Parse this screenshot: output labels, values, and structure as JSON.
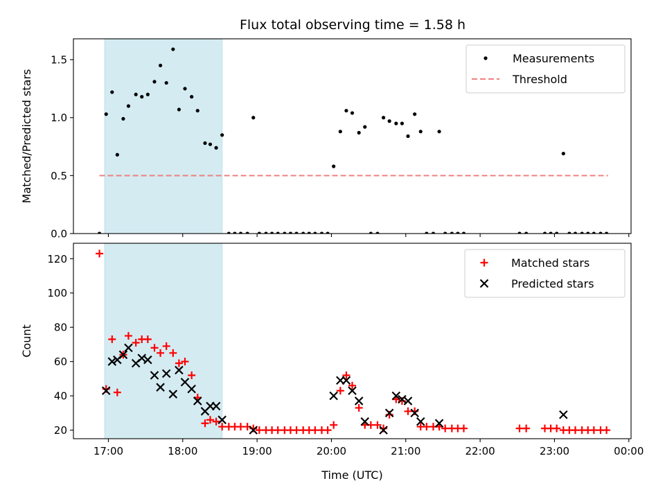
{
  "title": "Flux total observing time = 1.58 h",
  "colors": {
    "measurement": "#000000",
    "threshold": "#f08080",
    "matched": "#ff0000",
    "predicted": "#000000",
    "span": "#add8e6"
  },
  "chart_data": [
    {
      "type": "scatter",
      "name": "ratio",
      "ylabel": "Matched/Predicted stars",
      "xlim": [
        16.53,
        24.03
      ],
      "ylim": [
        0,
        1.68
      ],
      "yticks": [
        0.0,
        0.5,
        1.0,
        1.5
      ],
      "ytick_labels": [
        "0.0",
        "0.5",
        "1.0",
        "1.5"
      ],
      "span": [
        16.95,
        18.53
      ],
      "threshold": {
        "value": 0.5,
        "x_range": [
          16.88,
          23.72
        ],
        "label": "Threshold"
      },
      "legend": {
        "placement": "top-right",
        "entries": [
          "Measurements",
          "Threshold"
        ]
      },
      "series": [
        {
          "name": "Measurements",
          "x": [
            16.88,
            16.97,
            17.05,
            17.12,
            17.2,
            17.27,
            17.37,
            17.45,
            17.53,
            17.62,
            17.7,
            17.78,
            17.87,
            17.95,
            18.03,
            18.12,
            18.2,
            18.3,
            18.37,
            18.45,
            18.53,
            18.62,
            18.7,
            18.78,
            18.87,
            18.95,
            19.03,
            19.12,
            19.2,
            19.28,
            19.37,
            19.45,
            19.53,
            19.62,
            19.7,
            19.78,
            19.87,
            19.95,
            20.03,
            20.12,
            20.2,
            20.28,
            20.37,
            20.45,
            20.53,
            20.62,
            20.7,
            20.78,
            20.87,
            20.95,
            21.03,
            21.12,
            21.2,
            21.28,
            21.37,
            21.45,
            21.53,
            21.62,
            21.7,
            21.78,
            22.53,
            22.62,
            22.87,
            22.95,
            23.03,
            23.12,
            23.2,
            23.28,
            23.37,
            23.45,
            23.53,
            23.62,
            23.7
          ],
          "y": [
            0,
            1.03,
            1.22,
            0.68,
            0.99,
            1.1,
            1.2,
            1.18,
            1.2,
            1.31,
            1.45,
            1.3,
            1.59,
            1.07,
            1.25,
            1.18,
            1.06,
            0.78,
            0.77,
            0.74,
            0.85,
            0,
            0,
            0,
            0,
            1.0,
            0,
            0,
            0,
            0,
            0,
            0,
            0,
            0,
            0,
            0,
            0,
            0,
            0.58,
            0.88,
            1.06,
            1.04,
            0.87,
            0.92,
            0,
            0,
            1.0,
            0.97,
            0.95,
            0.95,
            0.84,
            1.03,
            0.88,
            0,
            0,
            0.88,
            0,
            0,
            0,
            0,
            0,
            0,
            0,
            0,
            0,
            0.69,
            0,
            0,
            0,
            0,
            0,
            0,
            0
          ]
        }
      ]
    },
    {
      "type": "scatter",
      "name": "counts",
      "xlabel": "Time (UTC)",
      "ylabel": "Count",
      "xlim": [
        16.53,
        24.03
      ],
      "ylim": [
        15,
        129
      ],
      "xticks": [
        17,
        18,
        19,
        20,
        21,
        22,
        23,
        24
      ],
      "xtick_labels": [
        "17:00",
        "18:00",
        "19:00",
        "20:00",
        "21:00",
        "22:00",
        "23:00",
        "00:00"
      ],
      "yticks": [
        20,
        40,
        60,
        80,
        100,
        120
      ],
      "ytick_labels": [
        "20",
        "40",
        "60",
        "80",
        "100",
        "120"
      ],
      "span": [
        16.95,
        18.53
      ],
      "legend": {
        "placement": "top-right",
        "entries": [
          "Matched stars",
          "Predicted stars"
        ]
      },
      "series": [
        {
          "name": "Matched stars",
          "marker": "plus",
          "x": [
            16.88,
            16.97,
            17.05,
            17.12,
            17.2,
            17.27,
            17.37,
            17.45,
            17.53,
            17.62,
            17.7,
            17.78,
            17.87,
            17.95,
            18.03,
            18.12,
            18.2,
            18.3,
            18.37,
            18.45,
            18.53,
            18.62,
            18.7,
            18.78,
            18.87,
            18.95,
            19.03,
            19.12,
            19.2,
            19.28,
            19.37,
            19.45,
            19.53,
            19.62,
            19.7,
            19.78,
            19.87,
            19.95,
            20.03,
            20.12,
            20.2,
            20.28,
            20.37,
            20.45,
            20.53,
            20.62,
            20.7,
            20.78,
            20.87,
            20.95,
            21.03,
            21.12,
            21.2,
            21.28,
            21.37,
            21.45,
            21.53,
            21.62,
            21.7,
            21.78,
            22.53,
            22.62,
            22.87,
            22.95,
            23.03,
            23.12,
            23.2,
            23.28,
            23.37,
            23.45,
            23.53,
            23.62,
            23.7
          ],
          "y": [
            123,
            44,
            73,
            42,
            64,
            75,
            71,
            73,
            73,
            68,
            65,
            69,
            65,
            59,
            60,
            52,
            39,
            24,
            26,
            25,
            22,
            22,
            22,
            22,
            22,
            21,
            20,
            20,
            20,
            20,
            20,
            20,
            20,
            20,
            20,
            20,
            20,
            20,
            23,
            43,
            52,
            46,
            33,
            23,
            23,
            23,
            21,
            29,
            38,
            37,
            31,
            31,
            22,
            22,
            22,
            22,
            21,
            21,
            21,
            21,
            21,
            21,
            21,
            21,
            21,
            20,
            20,
            20,
            20,
            20,
            20,
            20,
            20
          ]
        },
        {
          "name": "Predicted stars",
          "marker": "x",
          "x": [
            16.97,
            17.05,
            17.12,
            17.2,
            17.27,
            17.37,
            17.45,
            17.53,
            17.62,
            17.7,
            17.78,
            17.87,
            17.95,
            18.03,
            18.12,
            18.2,
            18.3,
            18.37,
            18.45,
            18.53,
            18.95,
            20.03,
            20.12,
            20.2,
            20.28,
            20.37,
            20.45,
            20.7,
            20.78,
            20.87,
            20.95,
            21.03,
            21.12,
            21.2,
            21.45,
            23.12
          ],
          "y": [
            43,
            60,
            61,
            64,
            68,
            59,
            62,
            61,
            52,
            45,
            53,
            41,
            55,
            48,
            44,
            37,
            31,
            34,
            34,
            26,
            20,
            40,
            49,
            49,
            43,
            37,
            25,
            20,
            30,
            40,
            38,
            37,
            30,
            25,
            24,
            29
          ]
        }
      ]
    }
  ]
}
